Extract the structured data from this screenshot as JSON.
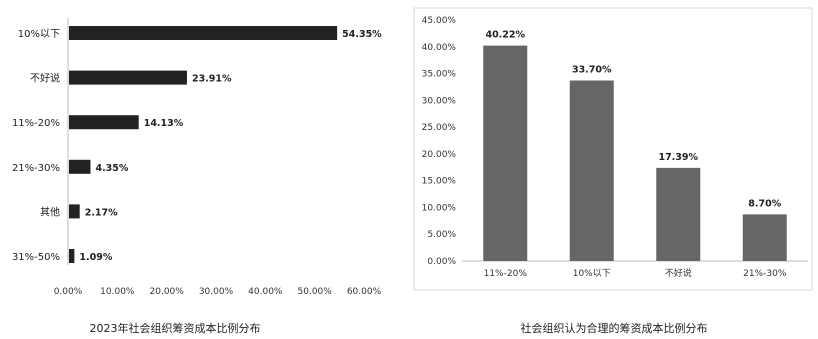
{
  "chart_data": [
    {
      "type": "bar",
      "orientation": "horizontal",
      "title": "2023年社会组织筹资成本比例分布",
      "categories": [
        "10%以下",
        "不好说",
        "11%-20%",
        "21%-30%",
        "其他",
        "31%-50%"
      ],
      "values": [
        54.35,
        23.91,
        14.13,
        4.35,
        2.17,
        1.09
      ],
      "value_labels": [
        "54.35%",
        "23.91%",
        "14.13%",
        "4.35%",
        "2.17%",
        "1.09%"
      ],
      "xlim": [
        0,
        60
      ],
      "x_ticks": [
        "0.00%",
        "10.00%",
        "20.00%",
        "30.00%",
        "40.00%",
        "50.00%",
        "60.00%"
      ],
      "bar_color": "#222222",
      "grid": false
    },
    {
      "type": "bar",
      "orientation": "vertical",
      "title": "社会组织认为合理的筹资成本比例分布",
      "categories": [
        "11%-20%",
        "10%以下",
        "不好说",
        "21%-30%"
      ],
      "values": [
        40.22,
        33.7,
        17.39,
        8.7
      ],
      "value_labels": [
        "40.22%",
        "33.70%",
        "17.39%",
        "8.70%"
      ],
      "ylim": [
        0,
        45
      ],
      "y_ticks": [
        "0.00%",
        "5.00%",
        "10.00%",
        "15.00%",
        "20.00%",
        "25.00%",
        "30.00%",
        "35.00%",
        "40.00%",
        "45.00%"
      ],
      "bar_color": "#666666",
      "grid": false
    }
  ]
}
